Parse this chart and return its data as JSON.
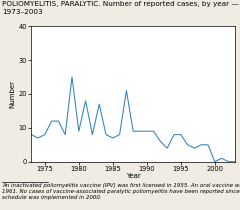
{
  "title_line1": "POLIOMYELITIS, PARALYTIC. Number of reported cases, by year — United States,",
  "title_line2": "1973–2003",
  "xlabel": "Year",
  "ylabel": "Number",
  "footnote": "An inactivated poliomyelitis vaccine (IPV) was first licensed in 1955. An oral vaccine was licensed in\n1961. No cases of vaccine-associated paralytic poliomyelitis have been reported since the IPV\nschedule was implemented in 2000.",
  "line_color": "#3a8abf",
  "years": [
    1973,
    1974,
    1975,
    1976,
    1977,
    1978,
    1979,
    1980,
    1981,
    1982,
    1983,
    1984,
    1985,
    1986,
    1987,
    1988,
    1989,
    1990,
    1991,
    1992,
    1993,
    1994,
    1995,
    1996,
    1997,
    1998,
    1999,
    2000,
    2001,
    2002,
    2003
  ],
  "cases": [
    8,
    7,
    8,
    12,
    12,
    8,
    25,
    9,
    18,
    8,
    17,
    8,
    7,
    8,
    21,
    9,
    9,
    9,
    9,
    6,
    4,
    8,
    8,
    5,
    4,
    5,
    5,
    0,
    1,
    0,
    0
  ],
  "ylim": [
    0,
    40
  ],
  "yticks": [
    0,
    10,
    20,
    30,
    40
  ],
  "xlim": [
    1973,
    2003
  ],
  "xticks": [
    1975,
    1980,
    1985,
    1990,
    1995,
    2000
  ],
  "background_color": "#f0ece4",
  "plot_bg_color": "#ffffff",
  "title_fontsize": 5.2,
  "axis_label_fontsize": 5,
  "tick_fontsize": 4.8,
  "footnote_fontsize": 4.0
}
